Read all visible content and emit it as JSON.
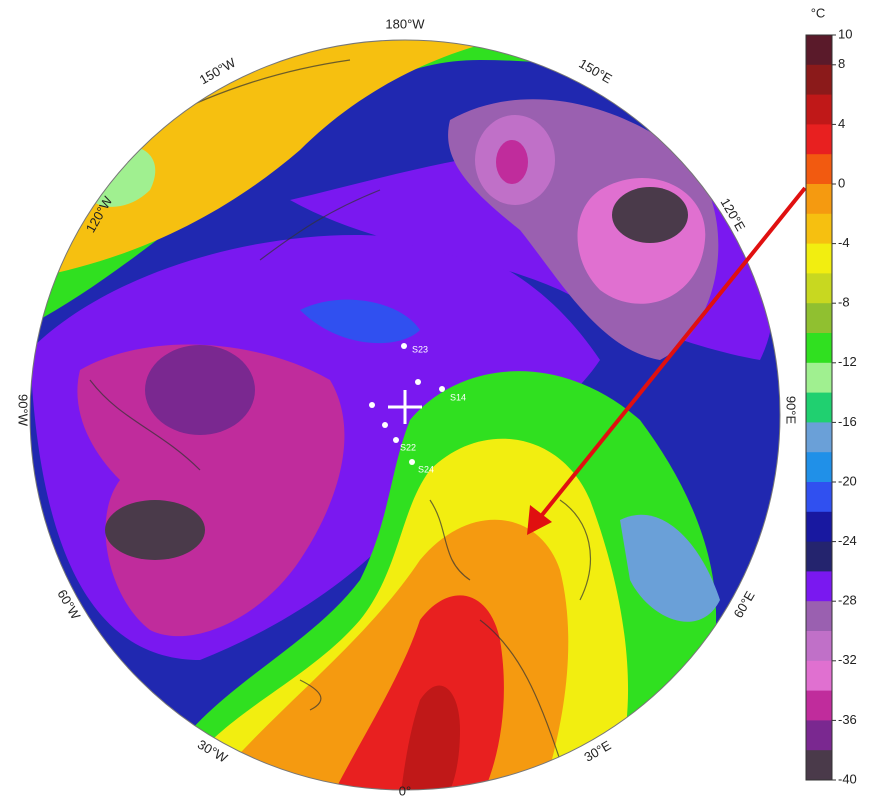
{
  "map": {
    "longitude_labels": [
      "180°W",
      "150°W",
      "120°W",
      "90°W",
      "60°W",
      "30°W",
      "0°",
      "30°E",
      "60°E",
      "90°E",
      "120°E",
      "150°E"
    ],
    "station_labels": [
      "S23",
      "S14",
      "S22",
      "S24"
    ]
  },
  "colorbar": {
    "unit": "°C",
    "lim": [
      -40,
      10
    ],
    "ticks": [
      10,
      8,
      4,
      0,
      -4,
      -8,
      -12,
      -16,
      -20,
      -24,
      -28,
      -32,
      -36,
      -40
    ],
    "colors": [
      "#5a1a2a",
      "#8b1a1a",
      "#c01818",
      "#e82020",
      "#f25a10",
      "#f59a10",
      "#f6c010",
      "#f2ee10",
      "#c8d820",
      "#90c030",
      "#30e020",
      "#a0f090",
      "#20d070",
      "#6aa0d8",
      "#2090e8",
      "#3050f0",
      "#1818a0",
      "#24246e",
      "#7a18f0",
      "#9a60b0",
      "#c070c8",
      "#e070d0",
      "#c02c9c",
      "#7a2890",
      "#4a3a4a"
    ]
  }
}
